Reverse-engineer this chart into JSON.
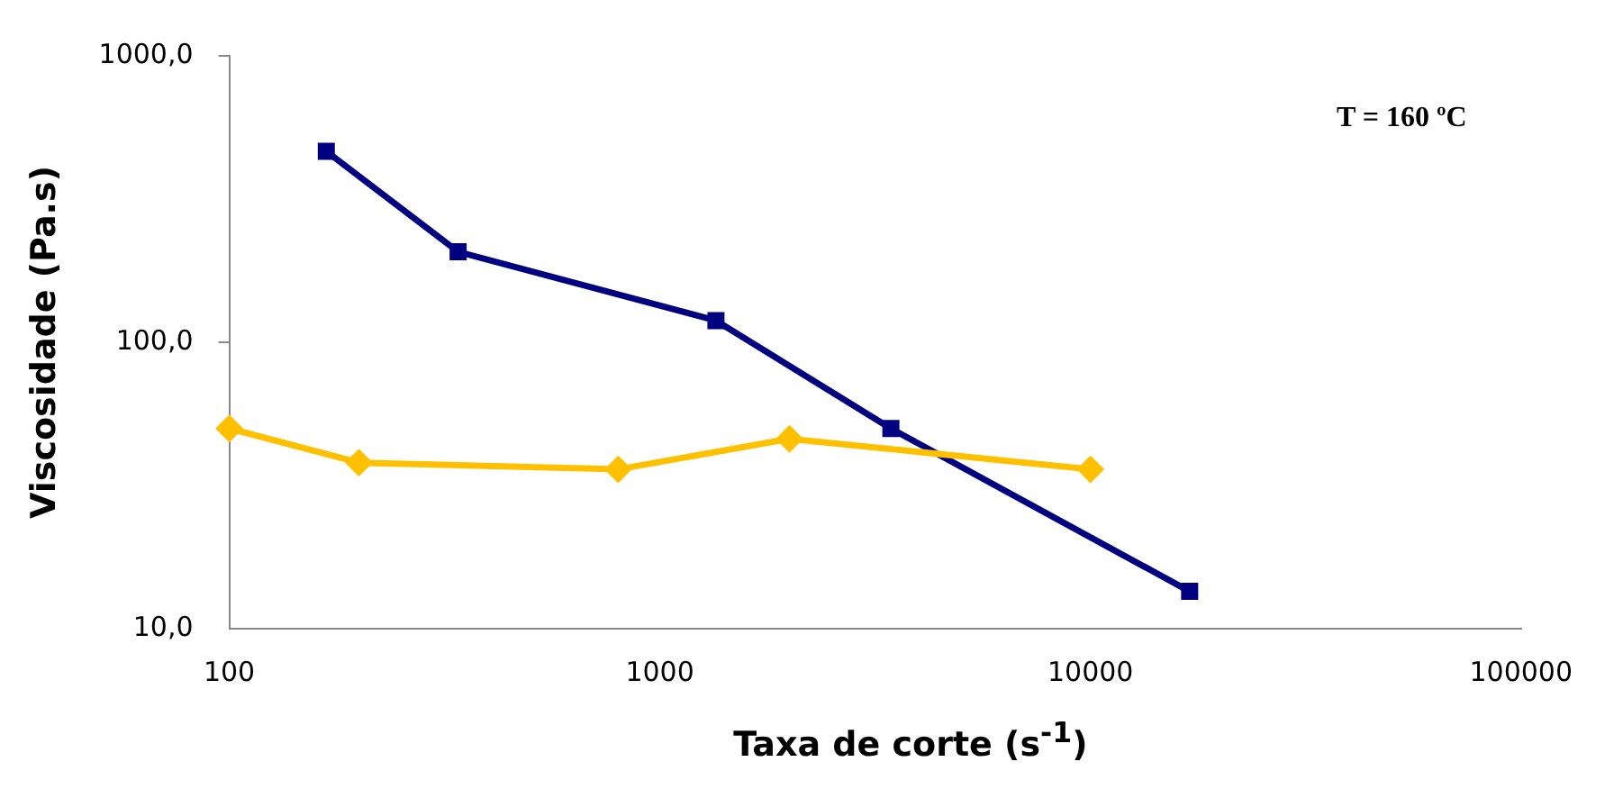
{
  "chart_data": {
    "type": "line",
    "xlabel": "Taxa de corte (s$^{-1}$)",
    "ylabel": "Viscosidade (Pa.s)",
    "annotations": [
      "T = 160 ºC"
    ],
    "log": "xy",
    "grid": false,
    "legend": false,
    "line_style": "solid",
    "xlim": [
      100,
      100000
    ],
    "xticks": [
      100,
      1000,
      10000,
      100000
    ],
    "ylim": [
      10,
      1000
    ],
    "yticks": [
      {
        "value": 10,
        "label": "10,0"
      },
      {
        "value": 100,
        "label": "100,0"
      },
      {
        "value": 1000,
        "label": "1000,0"
      }
    ],
    "series": [
      {
        "color": "#ffc000",
        "marker": "diamond",
        "x": [
          100,
          200,
          800,
          2000,
          10000
        ],
        "values": [
          50,
          38,
          36,
          46,
          36
        ]
      },
      {
        "color": "#000080",
        "marker": "square",
        "x": [
          168,
          340,
          1350,
          3440,
          17000
        ],
        "values": [
          464,
          207,
          119,
          50,
          13.5
        ]
      }
    ]
  }
}
